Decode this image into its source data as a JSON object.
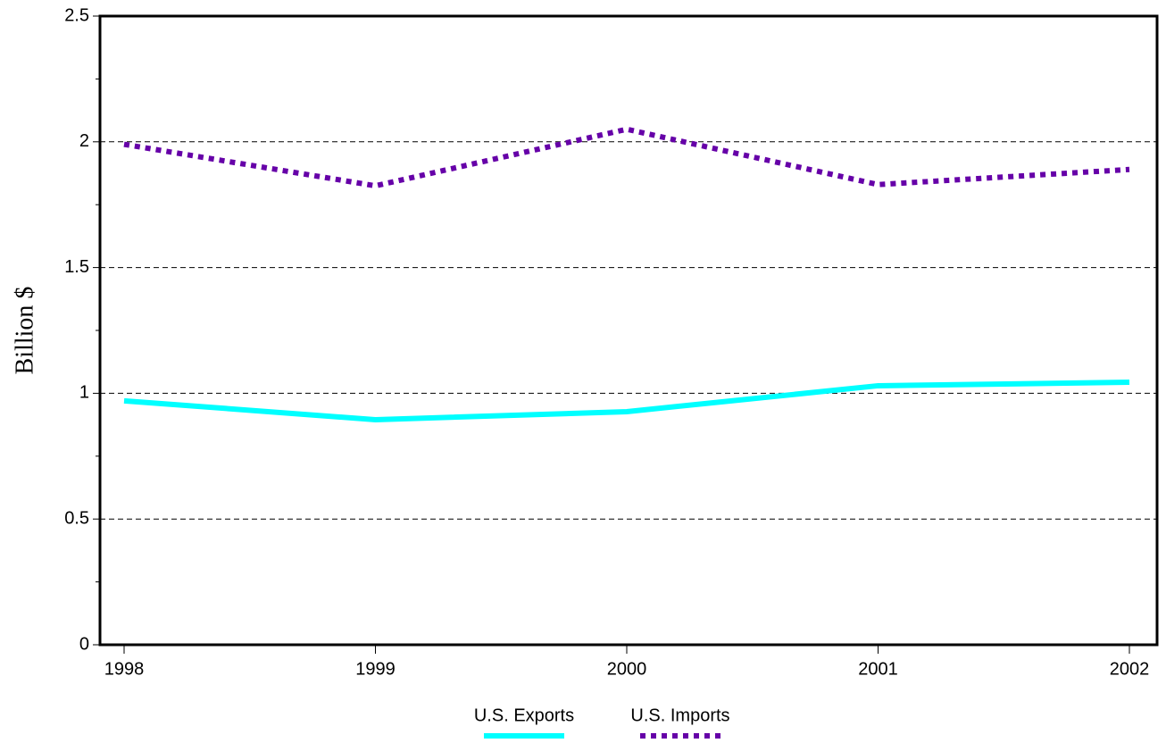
{
  "chart_data": {
    "type": "line",
    "y_label": "Billion $",
    "categories": [
      "1998",
      "1999",
      "2000",
      "2001",
      "2002"
    ],
    "series": [
      {
        "name": "U.S. Exports",
        "color": "#00ffff",
        "dash": "solid",
        "values": [
          0.97,
          0.895,
          0.927,
          1.03,
          1.044
        ]
      },
      {
        "name": "U.S. Imports",
        "color": "#6600a8",
        "dash": "dotted",
        "values": [
          1.99,
          1.825,
          2.05,
          1.83,
          1.89
        ]
      }
    ],
    "ylim": [
      0,
      2.5
    ],
    "yticks": [
      0,
      0.5,
      1,
      1.5,
      2,
      2.5
    ],
    "yminorticks": [
      0.25,
      0.75,
      1.25,
      1.75,
      2.25
    ],
    "grid": true,
    "legend": "bottom"
  }
}
